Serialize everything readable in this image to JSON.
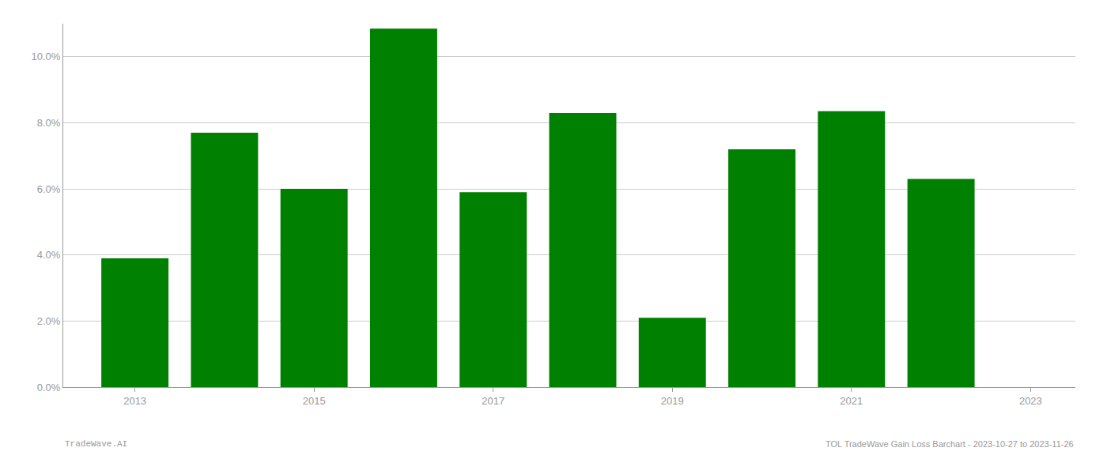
{
  "chart_data": {
    "type": "bar",
    "x": [
      2013,
      2014,
      2015,
      2016,
      2017,
      2018,
      2019,
      2020,
      2021,
      2022
    ],
    "values": [
      0.039,
      0.077,
      0.06,
      0.1085,
      0.059,
      0.083,
      0.021,
      0.072,
      0.0835,
      0.063
    ],
    "color": "#008000",
    "xlim": [
      2012.2,
      2023.5
    ],
    "xticks": [
      2013,
      2015,
      2017,
      2019,
      2021,
      2023
    ],
    "ylim": [
      0.0,
      0.11
    ],
    "yticks": [
      {
        "value": 0.0,
        "label": "0.0%"
      },
      {
        "value": 0.02,
        "label": "2.0%"
      },
      {
        "value": 0.04,
        "label": "4.0%"
      },
      {
        "value": 0.06,
        "label": "6.0%"
      },
      {
        "value": 0.08,
        "label": "8.0%"
      },
      {
        "value": 0.1,
        "label": "10.0%"
      }
    ],
    "grid": true,
    "annotations": [
      "TradeWave.AI",
      "TOL TradeWave Gain Loss Barchart - 2023-10-27 to 2023-11-26"
    ]
  }
}
